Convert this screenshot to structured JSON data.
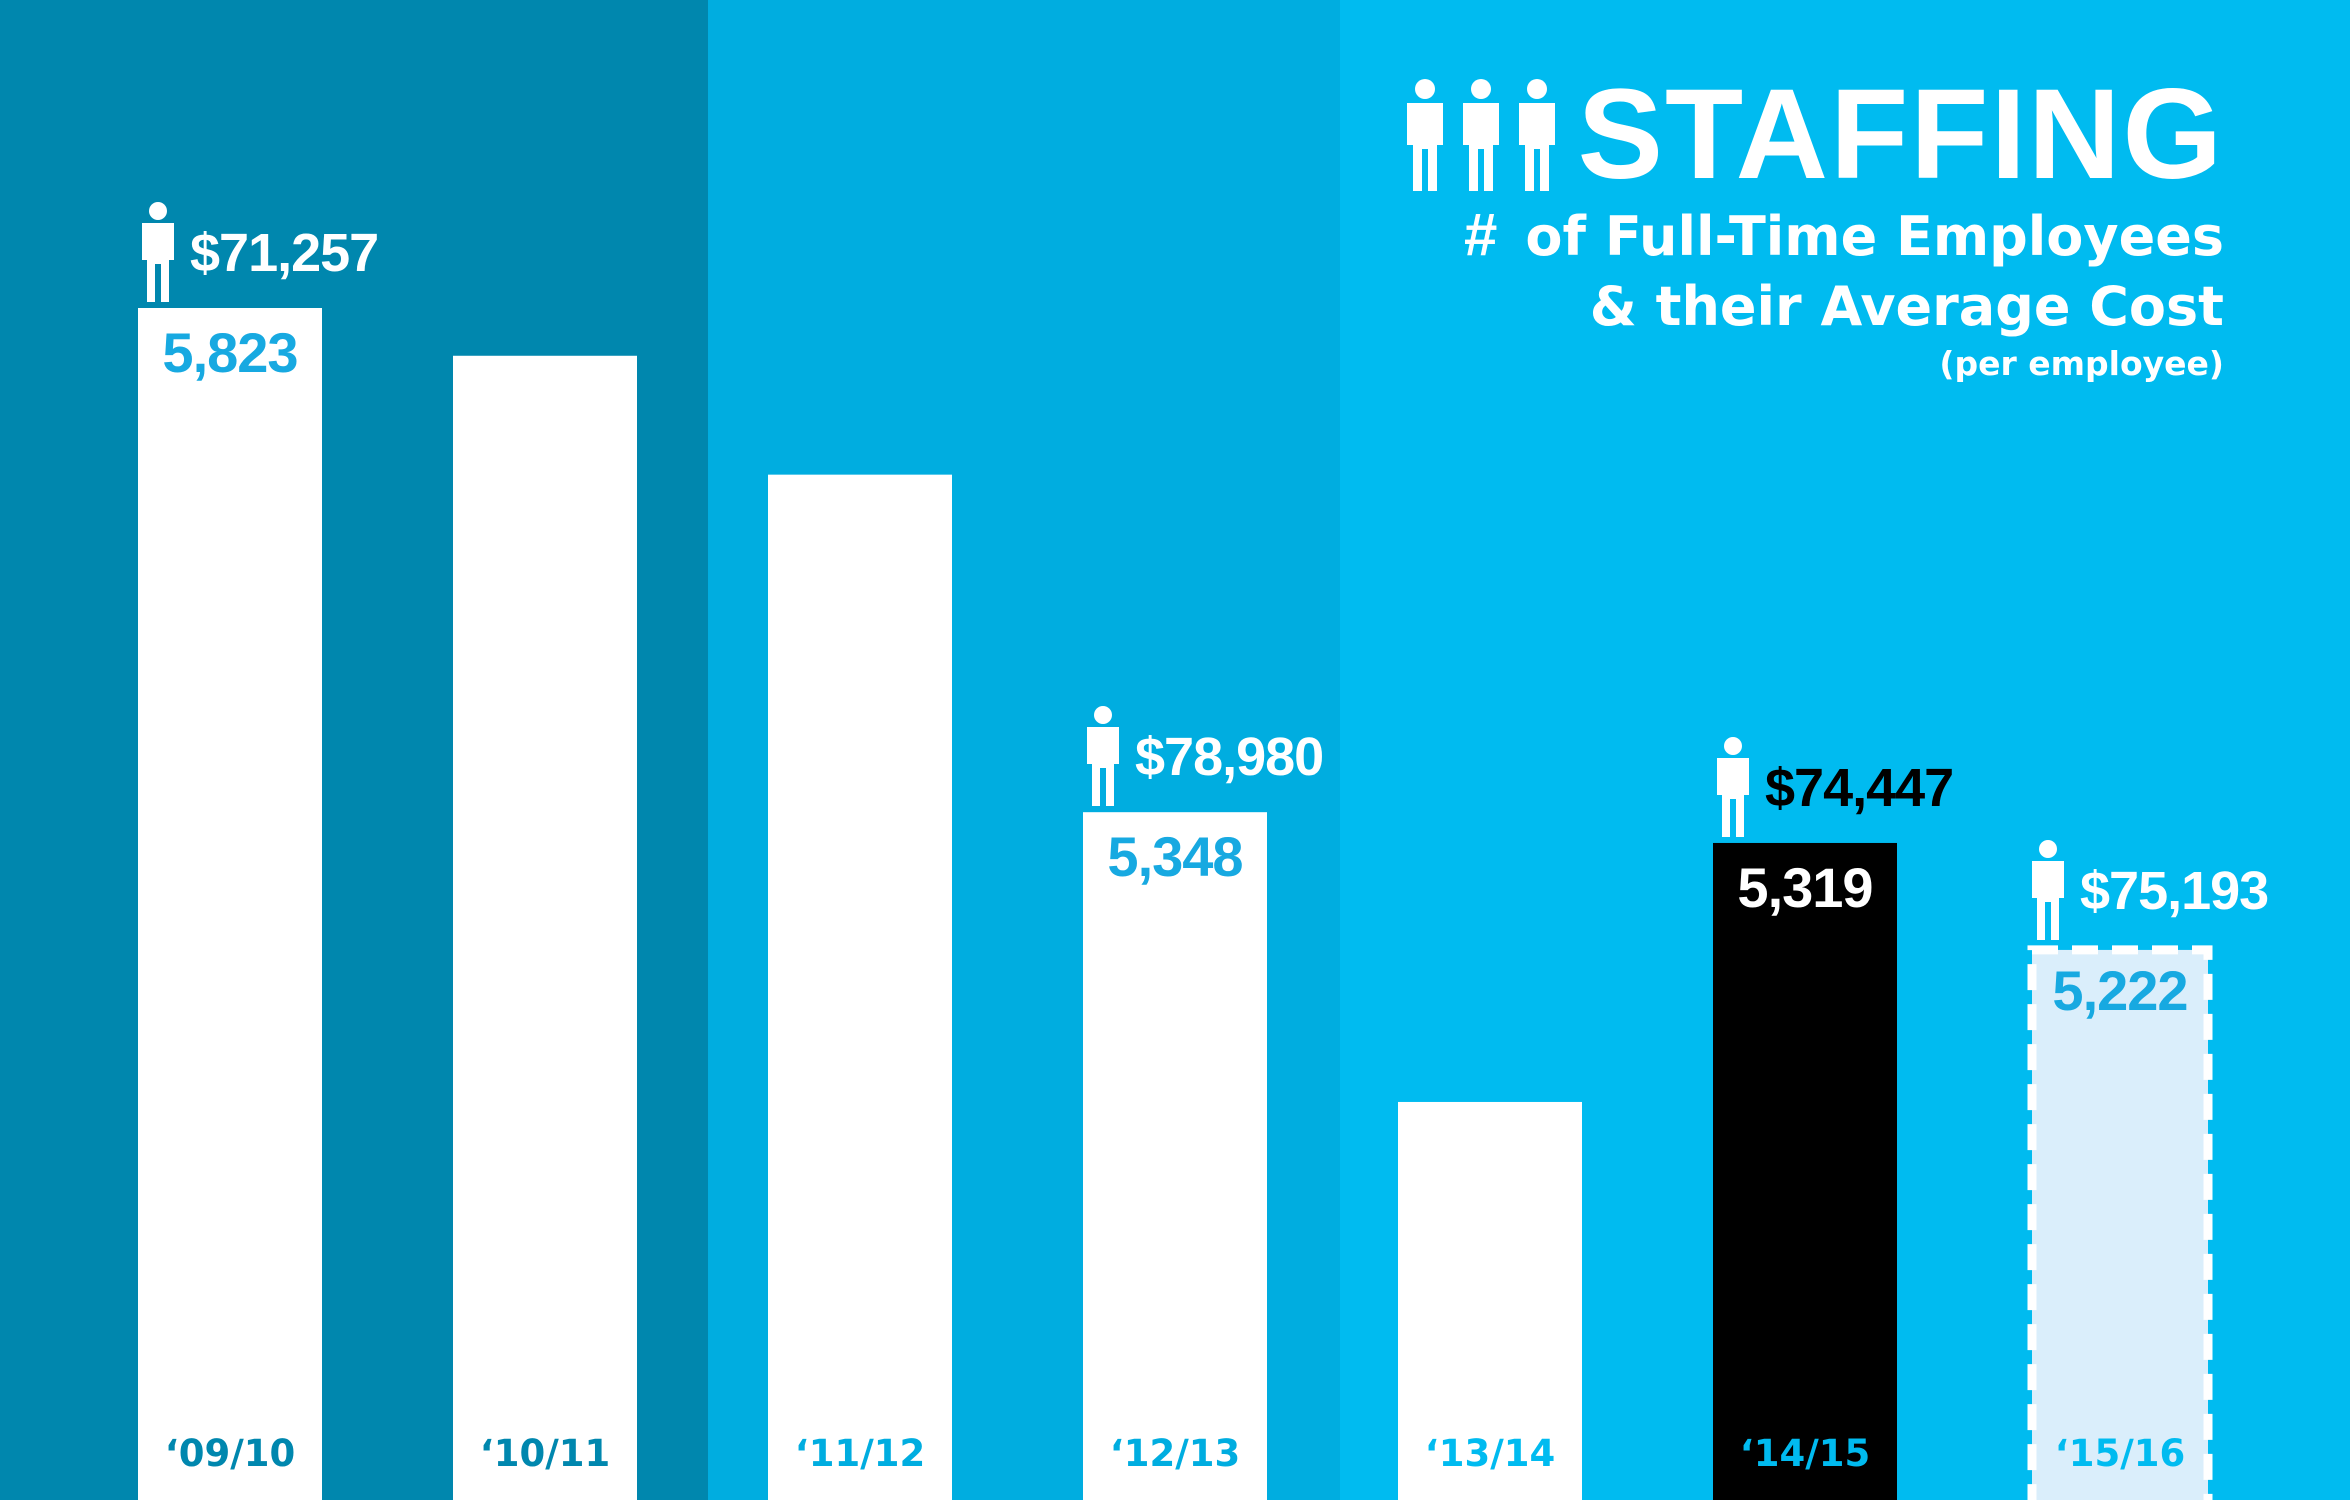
{
  "title": "STAFFING",
  "subtitle_hash": "#",
  "subtitle_line1": "of Full-Time Employees",
  "subtitle_line2": "& their Average Cost",
  "subtitle_note": "(per employee)",
  "colors": {
    "panel_dark": "#0087ae",
    "panel_mid": "#00ade0",
    "panel_light": "#00bbf0",
    "bar": "#ffffff",
    "bar_highlight": "#000000",
    "bar_projected": "#daeefb",
    "label_blue": "#17a9e1",
    "label_white": "#ffffff",
    "cost_white": "#ffffff",
    "cost_black": "#000000",
    "cat_dark": "#0087ae",
    "cat_mid": "#00ade0",
    "cat_light": "#00bbf0"
  },
  "icons": [
    "person-icon"
  ],
  "chart_data": {
    "type": "bar",
    "title": "STAFFING",
    "subtitle": "# of Full-Time Employees & their Average Cost (per employee)",
    "xlabel": "",
    "ylabel": "",
    "ylim": [
      4700,
      6200
    ],
    "categories": [
      "‘09/10",
      "‘10/11",
      "‘11/12",
      "‘12/13",
      "‘13/14",
      "‘14/15",
      "‘15/16"
    ],
    "values": [
      5823,
      5778,
      5666,
      5348,
      5075,
      5319,
      5222
    ],
    "value_labels": [
      "5,823",
      "",
      "",
      "5,348",
      "",
      "5,319",
      "5,222"
    ],
    "average_cost": [
      "$71,257",
      "",
      "",
      "$78,980",
      "",
      "$74,447",
      "$75,193"
    ],
    "bar_styles": [
      "normal",
      "normal",
      "normal",
      "normal",
      "normal",
      "highlight",
      "projected"
    ],
    "panels": [
      [
        "‘09/10",
        "‘10/11"
      ],
      [
        "‘11/12",
        "‘12/13"
      ],
      [
        "‘13/14",
        "‘14/15",
        "‘15/16"
      ]
    ],
    "grid": false,
    "legend": "none"
  }
}
